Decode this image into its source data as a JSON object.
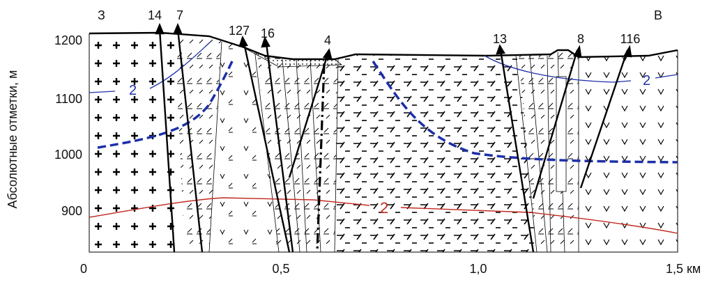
{
  "header": {
    "west": "З",
    "east": "В"
  },
  "axis": {
    "y_label": "Абсолютные отметки, м",
    "y_ticks": [
      "1200",
      "1100",
      "1000",
      "900"
    ],
    "x_ticks": [
      "0",
      "0,5",
      "1,0",
      "1,5 км"
    ]
  },
  "wells": [
    "14",
    "7",
    "127",
    "16",
    "4",
    "13",
    "8",
    "116"
  ],
  "contour_labels": [
    "2",
    "2",
    "2"
  ]
}
